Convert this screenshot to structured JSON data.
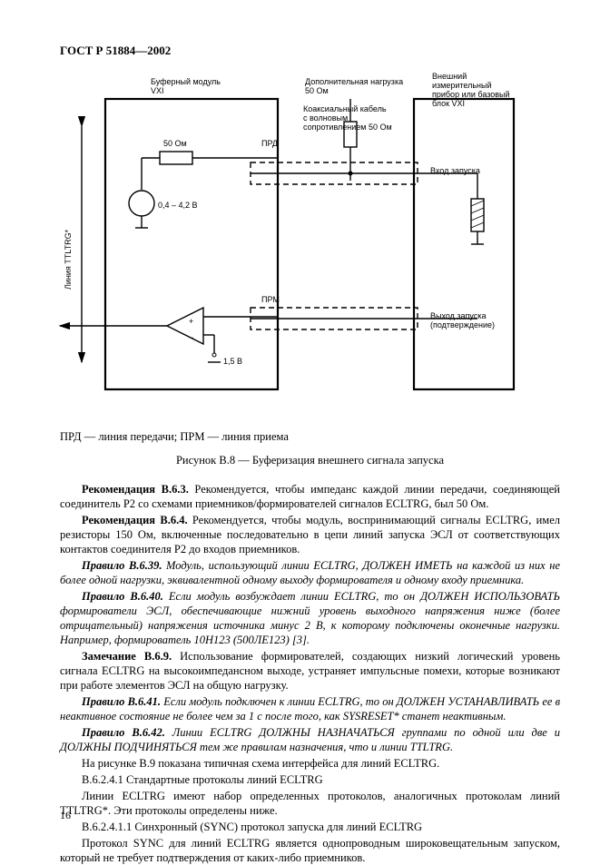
{
  "header": "ГОСТ Р 51884—2002",
  "diagram": {
    "labels": {
      "buffer_module": "Буферный модуль\nVXI",
      "extra_load": "Дополнительная нагрузка\n50 Ом",
      "coax": "Коаксиальный кабель\nс волновым\nсопротивлением 50 Ом",
      "ext_device": "Внешний\nизмерительный\nприбор или базовый\nблок VXI",
      "r50": "50 Ом",
      "voltage_src": "0,4 – 4,2 В",
      "prd": "ПРД",
      "prm": "ПРМ",
      "vref": "1,5 В",
      "line_ttl": "Линия TTLTRG*",
      "input_launch": "Вход запуска",
      "output_launch": "Выход запуска\n(подтверждение)"
    },
    "style": {
      "stroke": "#000000",
      "stroke_width": 1.4,
      "thick": 2.2,
      "dash": "6 4"
    }
  },
  "legend": "ПРД — линия передачи; ПРМ — линия приема",
  "fig_caption": "Рисунок В.8 — Буферизация внешнего сигнала запуска",
  "paragraphs": [
    {
      "prefix_bold": "Рекомендация В.6.3.",
      "text": " Рекомендуется, чтобы импеданс каждой линии передачи, соединяющей соединитель P2 со схемами приемников/формирователей сигналов ECLTRG, был 50 Ом."
    },
    {
      "prefix_bold": "Рекомендация В.6.4.",
      "text": " Рекомендуется, чтобы модуль, воспринимающий сигналы ECLTRG, имел резисторы 150 Ом, включенные последовательно в цепи линий запуска ЭСЛ от соответствующих контактов соединителя P2 до входов приемников."
    },
    {
      "prefix_bolditalic": "Правило В.6.39.",
      "italic": true,
      "text": " Модуль, использующий линии ECLTRG, ДОЛЖЕН ИМЕТЬ на каждой из них не более одной нагрузки, эквивалентной одному выходу формирователя и одному входу приемника."
    },
    {
      "prefix_bolditalic": "Правило В.6.40.",
      "italic": true,
      "text": " Если модуль возбуждает линии ECLTRG, то он ДОЛЖЕН ИСПОЛЬЗОВАТЬ формирователи ЭСЛ, обеспечивающие нижний уровень выходного напряжения ниже (более отрицательный) напряжения источника минус 2 В, к которому подключены оконечные нагрузки. Например, формирователь 10Н123 (500ЛЕ123) [3]."
    },
    {
      "prefix_bold": "Замечание В.6.9.",
      "text": " Использование формирователей, создающих низкий логический уровень сигнала ECLTRG на высокоимпедансном выходе, устраняет импульсные помехи, которые возникают при работе элементов ЭСЛ на общую нагрузку."
    },
    {
      "prefix_bolditalic": "Правило В.6.41.",
      "italic": true,
      "text": " Если модуль подключен к линии ECLTRG, то он ДОЛЖЕН УСТАНАВЛИВАТЬ ее в неактивное состояние не более чем за 1 с после того, как SYSRESET* станет неактивным."
    },
    {
      "prefix_bolditalic": "Правило В.6.42.",
      "italic": true,
      "text": " Линии ECLTRG ДОЛЖНЫ НАЗНАЧАТЬСЯ группами по одной или две и ДОЛЖНЫ ПОДЧИНЯТЬСЯ тем же правилам назначения, что и линии TTLTRG."
    },
    {
      "text": "На рисунке В.9 показана типичная схема интерфейса для линий ECLTRG."
    },
    {
      "text": "В.6.2.4.1 Стандартные протоколы линий ECLTRG"
    },
    {
      "text": "Линии ECLTRG имеют набор определенных протоколов, аналогичных протоколам линий TTLTRG*. Эти протоколы определены ниже."
    },
    {
      "text": "В.6.2.4.1.1 Синхронный (SYNC) протокол запуска для линий ECLTRG"
    },
    {
      "text": "Протокол SYNC для линий ECLTRG является однопроводным широковещательным запуском, который не требует подтверждения от каких-либо приемников."
    }
  ],
  "page_number": "16"
}
